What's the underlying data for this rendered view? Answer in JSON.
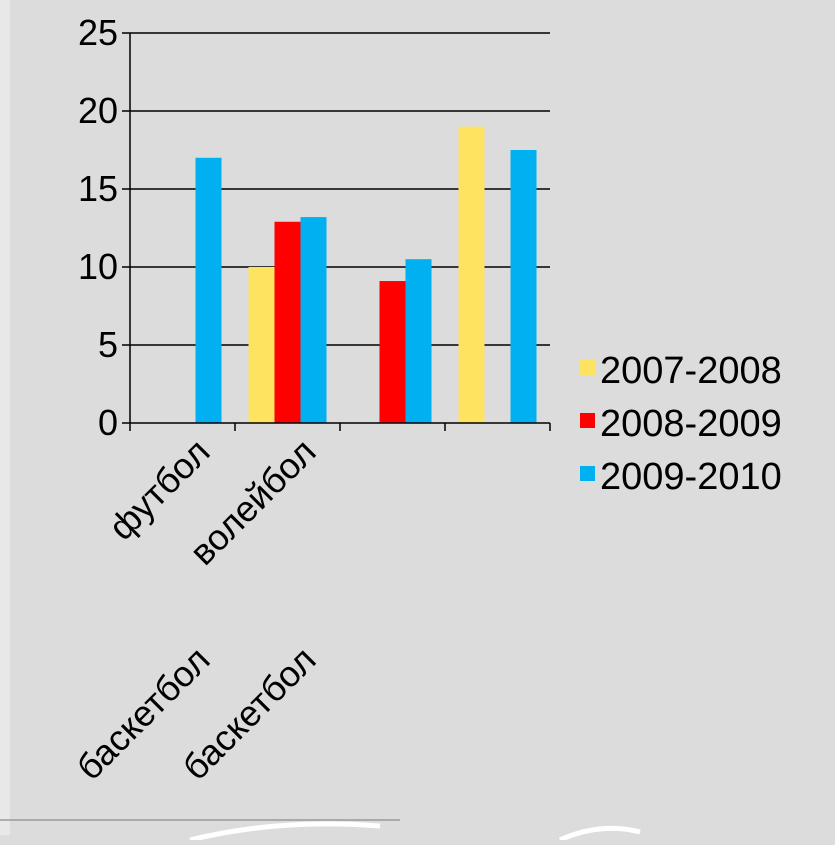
{
  "chart_data": {
    "type": "bar",
    "categories": [
      "футбол",
      "волейбол",
      "баскетбол",
      "баскетбол"
    ],
    "series": [
      {
        "name": "2007-2008",
        "color": "#fde35f",
        "values": [
          0,
          10,
          0,
          19
        ]
      },
      {
        "name": "2008-2009",
        "color": "#ff0000",
        "values": [
          0,
          12.9,
          9.1,
          0
        ]
      },
      {
        "name": "2009-2010",
        "color": "#00b0f0",
        "values": [
          17,
          13.2,
          10.5,
          17.5
        ]
      }
    ],
    "title": "",
    "xlabel": "",
    "ylabel": "",
    "ylim": [
      0,
      25
    ],
    "yticks": [
      0,
      5,
      10,
      15,
      20,
      25
    ],
    "grid": true,
    "legend_position": "right"
  }
}
